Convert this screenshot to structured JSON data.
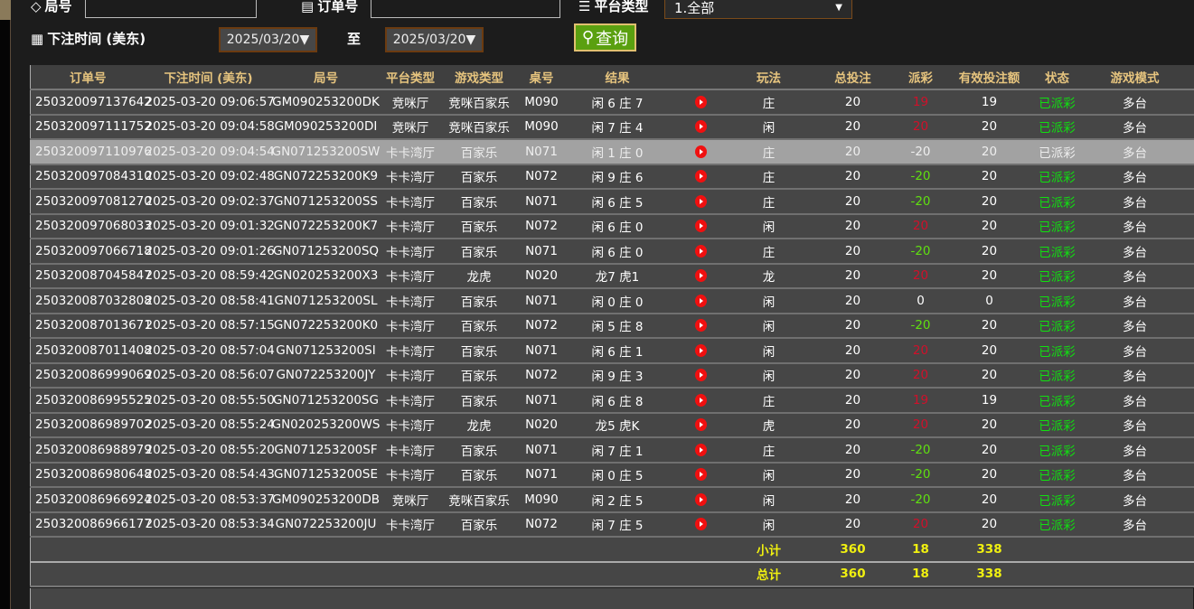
{
  "filters": {
    "round_label": "局号",
    "round_value": "",
    "order_label": "订单号",
    "order_value": "",
    "platform_label": "平台类型",
    "platform_value": "1.全部",
    "bet_time_label": "下注时间 (美东)",
    "date_from": "2025/03/20▼",
    "to_label": "至",
    "date_to": "2025/03/20▼",
    "query_label": "查询"
  },
  "columns": [
    "订单号",
    "下注时间 (美东)",
    "局号",
    "平台类型",
    "游戏类型",
    "桌号",
    "结果",
    "",
    "玩法",
    "总投注",
    "派彩",
    "有效投注额",
    "状态",
    "游戏模式"
  ],
  "rows": [
    [
      "250320097137642",
      "2025-03-20 09:06:57",
      "GM090253200DK",
      "竞咪厅",
      "竞咪百家乐",
      "M090",
      "闲 6 庄 7",
      "庄",
      "20",
      "19",
      "19",
      "已派彩",
      "多台"
    ],
    [
      "250320097111752",
      "2025-03-20 09:04:58",
      "GM090253200DI",
      "竞咪厅",
      "竞咪百家乐",
      "M090",
      "闲 7 庄 4",
      "闲",
      "20",
      "20",
      "20",
      "已派彩",
      "多台"
    ],
    [
      "250320097110976",
      "2025-03-20 09:04:54",
      "GN071253200SW",
      "卡卡湾厅",
      "百家乐",
      "N071",
      "闲 1 庄 0",
      "庄",
      "20",
      "-20",
      "20",
      "已派彩",
      "多台"
    ],
    [
      "250320097084310",
      "2025-03-20 09:02:48",
      "GN072253200K9",
      "卡卡湾厅",
      "百家乐",
      "N072",
      "闲 9 庄 6",
      "庄",
      "20",
      "-20",
      "20",
      "已派彩",
      "多台"
    ],
    [
      "250320097081270",
      "2025-03-20 09:02:37",
      "GN071253200SS",
      "卡卡湾厅",
      "百家乐",
      "N071",
      "闲 6 庄 5",
      "庄",
      "20",
      "-20",
      "20",
      "已派彩",
      "多台"
    ],
    [
      "250320097068033",
      "2025-03-20 09:01:32",
      "GN072253200K7",
      "卡卡湾厅",
      "百家乐",
      "N072",
      "闲 6 庄 0",
      "闲",
      "20",
      "20",
      "20",
      "已派彩",
      "多台"
    ],
    [
      "250320097066718",
      "2025-03-20 09:01:26",
      "GN071253200SQ",
      "卡卡湾厅",
      "百家乐",
      "N071",
      "闲 6 庄 0",
      "庄",
      "20",
      "-20",
      "20",
      "已派彩",
      "多台"
    ],
    [
      "250320087045847",
      "2025-03-20 08:59:42",
      "GN020253200X3",
      "卡卡湾厅",
      "龙虎",
      "N020",
      "龙7 虎1",
      "龙",
      "20",
      "20",
      "20",
      "已派彩",
      "多台"
    ],
    [
      "250320087032808",
      "2025-03-20 08:58:41",
      "GN071253200SL",
      "卡卡湾厅",
      "百家乐",
      "N071",
      "闲 0 庄 0",
      "闲",
      "20",
      "0",
      "0",
      "已派彩",
      "多台"
    ],
    [
      "250320087013671",
      "2025-03-20 08:57:15",
      "GN072253200K0",
      "卡卡湾厅",
      "百家乐",
      "N072",
      "闲 5 庄 8",
      "闲",
      "20",
      "-20",
      "20",
      "已派彩",
      "多台"
    ],
    [
      "250320087011408",
      "2025-03-20 08:57:04",
      "GN071253200SI",
      "卡卡湾厅",
      "百家乐",
      "N071",
      "闲 6 庄 1",
      "闲",
      "20",
      "20",
      "20",
      "已派彩",
      "多台"
    ],
    [
      "250320086999069",
      "2025-03-20 08:56:07",
      "GN072253200JY",
      "卡卡湾厅",
      "百家乐",
      "N072",
      "闲 9 庄 3",
      "闲",
      "20",
      "20",
      "20",
      "已派彩",
      "多台"
    ],
    [
      "250320086995525",
      "2025-03-20 08:55:50",
      "GN071253200SG",
      "卡卡湾厅",
      "百家乐",
      "N071",
      "闲 6 庄 8",
      "庄",
      "20",
      "19",
      "19",
      "已派彩",
      "多台"
    ],
    [
      "250320086989702",
      "2025-03-20 08:55:24",
      "GN020253200WS",
      "卡卡湾厅",
      "龙虎",
      "N020",
      "龙5 虎K",
      "虎",
      "20",
      "20",
      "20",
      "已派彩",
      "多台"
    ],
    [
      "250320086988979",
      "2025-03-20 08:55:20",
      "GN071253200SF",
      "卡卡湾厅",
      "百家乐",
      "N071",
      "闲 7 庄 1",
      "庄",
      "20",
      "-20",
      "20",
      "已派彩",
      "多台"
    ],
    [
      "250320086980648",
      "2025-03-20 08:54:43",
      "GN071253200SE",
      "卡卡湾厅",
      "百家乐",
      "N071",
      "闲 0 庄 5",
      "闲",
      "20",
      "-20",
      "20",
      "已派彩",
      "多台"
    ],
    [
      "250320086966924",
      "2025-03-20 08:53:37",
      "GM090253200DB",
      "竞咪厅",
      "竞咪百家乐",
      "M090",
      "闲 2 庄 5",
      "闲",
      "20",
      "-20",
      "20",
      "已派彩",
      "多台"
    ],
    [
      "250320086966177",
      "2025-03-20 08:53:34",
      "GN072253200JU",
      "卡卡湾厅",
      "百家乐",
      "N072",
      "闲 7 庄 5",
      "闲",
      "20",
      "20",
      "20",
      "已派彩",
      "多台"
    ]
  ],
  "highlighted_row": 2,
  "subtotal": {
    "label": "小计",
    "total": "360",
    "payout": "18",
    "valid": "338"
  },
  "grand_total": {
    "label": "总计",
    "total": "360",
    "payout": "18",
    "valid": "338"
  },
  "colors": {
    "positive_payout": "#d0102a",
    "negative_payout": "#60e010",
    "status": "#10e010",
    "header_text": "#e6c47e",
    "totals": "#f0f010",
    "query_button": "#5aa010"
  }
}
